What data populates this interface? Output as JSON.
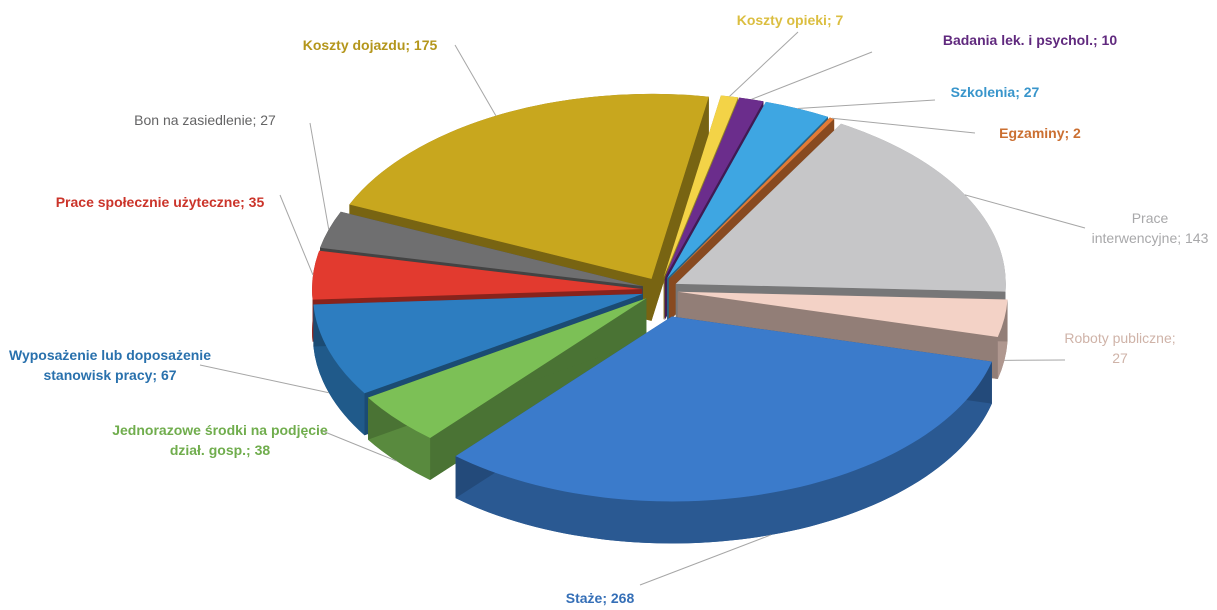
{
  "chart_data": {
    "type": "pie",
    "values": [
      7,
      10,
      27,
      2,
      143,
      27,
      268,
      38,
      67,
      35,
      27,
      175
    ],
    "value_labels": [
      "Koszty opieki; 7",
      "Badania lek. i psychol.; 10",
      "Szkolenia; 27",
      "Egzaminy; 2",
      "Prace interwencyjne; 143",
      "Roboty publiczne; 27",
      "Staże; 268",
      "Jednorazowe środki na podjęcie dział. gosp.; 38",
      "Wyposażenie lub doposażenie stanowisk pracy; 67",
      "Prace społecznie użyteczne; 35",
      "Bon na zasiedlenie; 27",
      "Koszty dojazdu; 175"
    ],
    "colors": [
      "#f3d347",
      "#6b2d8c",
      "#3ea6e2",
      "#e27b36",
      "#c6c6c8",
      "#f3d2c6",
      "#3b7bcb",
      "#7cc056",
      "#2d7dc0",
      "#e23a2f",
      "#6f6f70",
      "#c8a71e"
    ]
  }
}
